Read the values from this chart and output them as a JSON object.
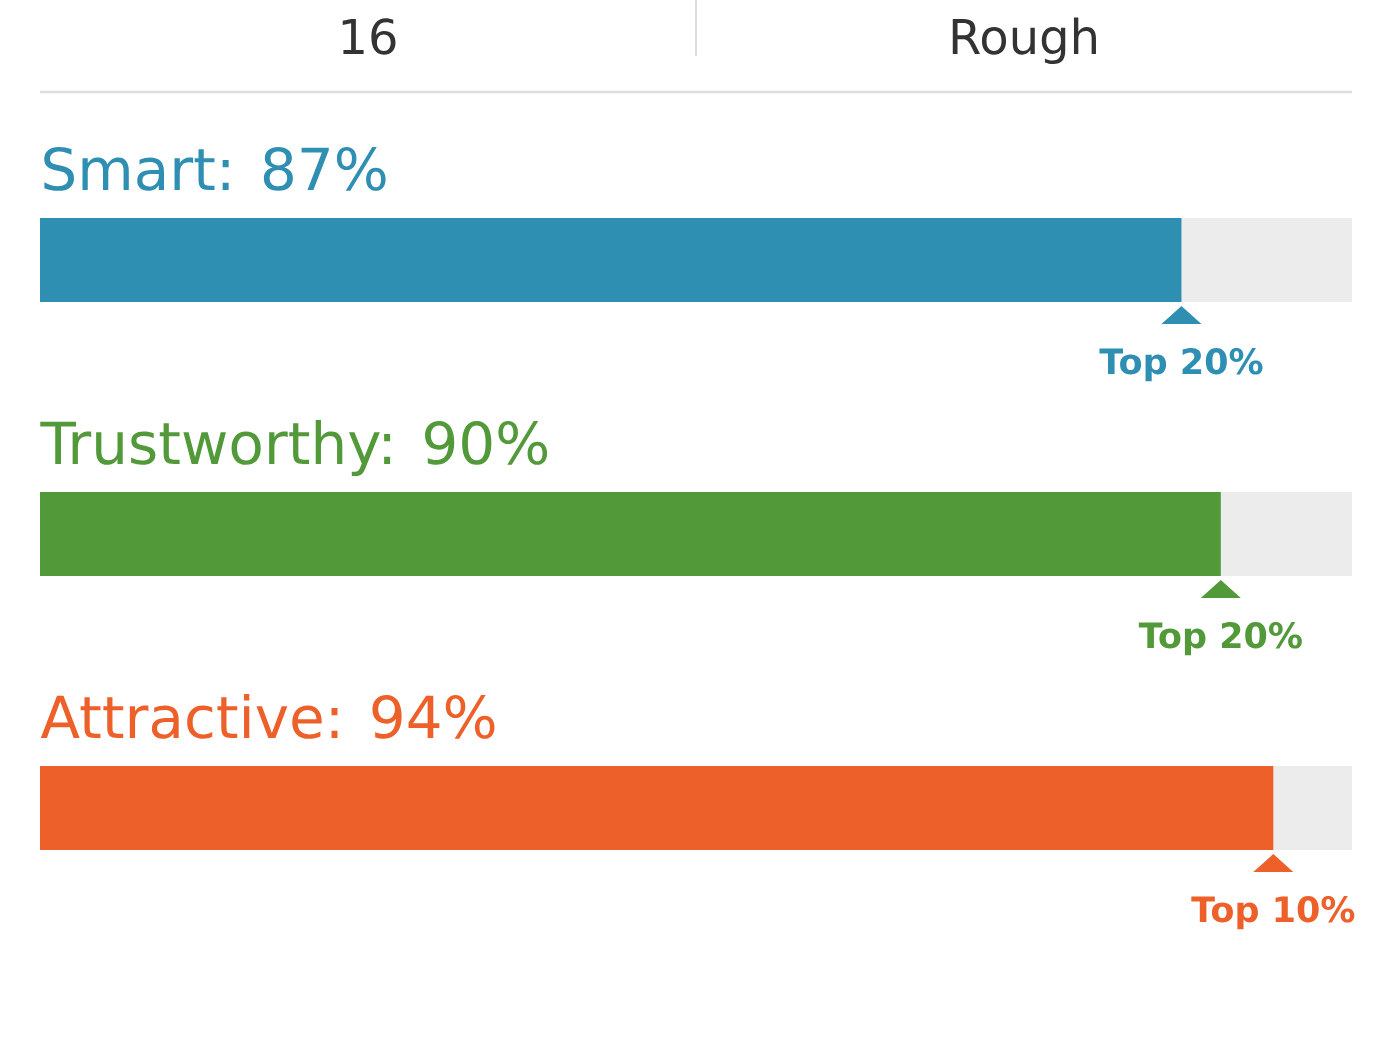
{
  "chart_data": {
    "type": "bar",
    "orientation": "horizontal",
    "categories": [
      null,
      null,
      null
    ],
    "values": [
      87,
      90,
      94
    ],
    "value_labels": [
      "Smart: 87%",
      "Trustworthy: 90%",
      "Attractive: 94%"
    ],
    "colors": [
      "#2e8fb3",
      "#52993a",
      "#ee6029"
    ],
    "xlim": [
      0,
      100
    ],
    "annotations": [
      "16",
      "Rough",
      "Top 20%",
      "Top 20%",
      "Top 10%"
    ]
  }
}
